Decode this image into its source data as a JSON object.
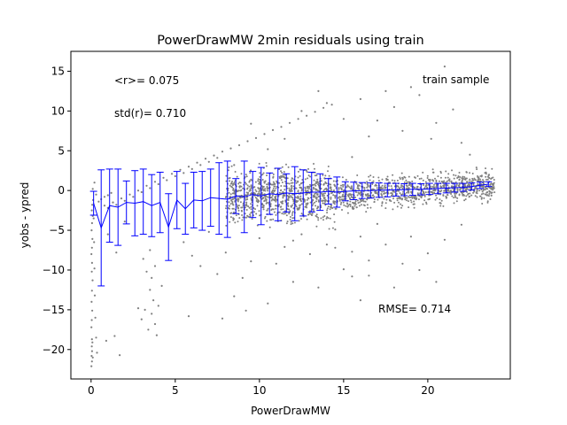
{
  "chart_data": {
    "type": "scatter",
    "title": "PowerDrawMW 2min residuals using train",
    "xlabel": "PowerDrawMW",
    "ylabel": "yobs - ypred",
    "xlim": [
      -1.2,
      24.9
    ],
    "ylim": [
      -23.7,
      17.5
    ],
    "xticks": [
      0,
      5,
      10,
      15,
      20
    ],
    "yticks": [
      -20,
      -15,
      -10,
      -5,
      0,
      5,
      10,
      15
    ],
    "grid": false,
    "annotations": {
      "mean": "<r>= 0.075",
      "std": "std(r)= 0.710",
      "rmse": "RMSE= 0.714",
      "sample": "train sample"
    },
    "colors": {
      "points": "#808080",
      "errorbars": "#0000ff",
      "axes": "#000000"
    },
    "series": [
      {
        "type": "errorbar",
        "x": [
          0.15,
          0.6,
          1.1,
          1.6,
          2.1,
          2.6,
          3.1,
          3.6,
          4.1,
          4.6,
          5.1,
          5.6,
          6.1,
          6.6,
          7.1,
          7.6,
          8.1,
          8.6,
          9.1,
          9.6,
          10.1,
          10.6,
          11.1,
          11.6,
          12.1,
          12.6,
          13.1,
          13.6,
          14.1,
          14.6,
          15.1,
          15.6,
          16.1,
          16.6,
          17.1,
          17.6,
          18.1,
          18.6,
          19.1,
          19.6,
          20.1,
          20.6,
          21.1,
          21.6,
          22.1,
          22.6,
          23.1,
          23.6
        ],
        "y": [
          -1.6,
          -4.7,
          -1.9,
          -2.1,
          -1.5,
          -1.6,
          -1.4,
          -1.9,
          -1.5,
          -4.6,
          -1.2,
          -2.3,
          -1.2,
          -1.3,
          -0.9,
          -1.0,
          -1.1,
          -0.7,
          -0.8,
          -0.5,
          -0.7,
          -0.4,
          -0.5,
          -0.3,
          -0.4,
          -0.3,
          -0.2,
          -0.2,
          -0.1,
          -0.2,
          -0.1,
          -0.05,
          0.0,
          0.0,
          0.05,
          0.05,
          0.1,
          0.1,
          0.15,
          0.15,
          0.2,
          0.25,
          0.3,
          0.35,
          0.4,
          0.5,
          0.65,
          0.8
        ],
        "yerr": [
          1.5,
          7.3,
          4.6,
          4.8,
          2.7,
          4.1,
          4.1,
          3.9,
          3.8,
          4.2,
          3.6,
          3.2,
          3.5,
          3.7,
          3.6,
          4.5,
          4.8,
          2.2,
          4.5,
          2.9,
          3.6,
          2.6,
          3.3,
          2.4,
          3.4,
          2.9,
          2.5,
          2.3,
          1.6,
          1.9,
          1.2,
          1.1,
          1.0,
          0.95,
          0.9,
          0.85,
          0.8,
          0.75,
          0.75,
          0.7,
          0.7,
          0.65,
          0.6,
          0.55,
          0.5,
          0.45,
          0.4,
          0.3
        ]
      },
      {
        "type": "scatter",
        "points": [
          [
            0.02,
            -22.1
          ],
          [
            0.05,
            -21.5
          ],
          [
            0.03,
            -20.8
          ],
          [
            0.06,
            -20.2
          ],
          [
            0.04,
            -19.6
          ],
          [
            0.08,
            -19.1
          ],
          [
            0.05,
            -18.7
          ],
          [
            0.1,
            -21.0
          ],
          [
            0.02,
            -17.2
          ],
          [
            0.04,
            -16.3
          ],
          [
            0.07,
            -15.1
          ],
          [
            0.03,
            -14.0
          ],
          [
            0.05,
            -12.6
          ],
          [
            0.09,
            -11.3
          ],
          [
            0.04,
            -10.2
          ],
          [
            0.06,
            -9.1
          ],
          [
            0.02,
            -8.0
          ],
          [
            0.05,
            -7.2
          ],
          [
            0.08,
            -6.1
          ],
          [
            0.03,
            -5.0
          ],
          [
            0.06,
            -4.1
          ],
          [
            0.1,
            -3.2
          ],
          [
            0.04,
            -2.5
          ],
          [
            0.07,
            -1.8
          ],
          [
            0.12,
            -1.2
          ],
          [
            0.15,
            -3.5
          ],
          [
            0.18,
            -6.5
          ],
          [
            0.2,
            -9.8
          ],
          [
            0.22,
            -13.2
          ],
          [
            0.25,
            -16.0
          ],
          [
            0.3,
            -18.5
          ],
          [
            0.35,
            -20.4
          ],
          [
            0.1,
            0.2
          ],
          [
            0.2,
            1.0
          ],
          [
            0.3,
            -0.5
          ],
          [
            0.45,
            -1.4
          ],
          [
            0.6,
            -1.1
          ],
          [
            0.8,
            -0.8
          ],
          [
            1.0,
            -0.6
          ],
          [
            1.2,
            -0.3
          ],
          [
            0.9,
            -18.9
          ],
          [
            1.4,
            -18.3
          ],
          [
            1.7,
            -20.7
          ],
          [
            1.0,
            -5.5
          ],
          [
            1.5,
            -7.8
          ],
          [
            2.0,
            -3.9
          ],
          [
            0.8,
            -1.9
          ],
          [
            1.3,
            -1.5
          ],
          [
            1.8,
            -1.0
          ],
          [
            2.3,
            -0.5
          ],
          [
            2.8,
            0.0
          ],
          [
            3.3,
            0.6
          ],
          [
            3.8,
            1.1
          ],
          [
            4.3,
            1.6
          ],
          [
            4.8,
            2.1
          ],
          [
            5.3,
            2.6
          ],
          [
            5.8,
            3.0
          ],
          [
            6.3,
            3.5
          ],
          [
            6.8,
            4.0
          ],
          [
            7.3,
            4.4
          ],
          [
            7.8,
            4.9
          ],
          [
            8.3,
            5.3
          ],
          [
            8.8,
            5.7
          ],
          [
            9.3,
            6.2
          ],
          [
            9.8,
            6.6
          ],
          [
            10.3,
            7.1
          ],
          [
            10.8,
            7.6
          ],
          [
            11.3,
            8.0
          ],
          [
            11.8,
            8.5
          ],
          [
            12.3,
            9.0
          ],
          [
            12.8,
            9.4
          ],
          [
            13.3,
            9.9
          ],
          [
            13.8,
            10.4
          ],
          [
            14.3,
            10.8
          ],
          [
            1.0,
            -2.2
          ],
          [
            1.5,
            -1.8
          ],
          [
            2.0,
            -1.3
          ],
          [
            2.5,
            -0.8
          ],
          [
            3.0,
            -0.2
          ],
          [
            3.5,
            0.3
          ],
          [
            4.0,
            0.8
          ],
          [
            4.5,
            1.3
          ],
          [
            5.0,
            1.8
          ],
          [
            5.5,
            2.2
          ],
          [
            6.0,
            2.7
          ],
          [
            6.5,
            3.2
          ],
          [
            7.0,
            3.6
          ],
          [
            7.5,
            4.1
          ],
          [
            2.8,
            -14.8
          ],
          [
            3.0,
            -16.2
          ],
          [
            3.2,
            -15.0
          ],
          [
            3.4,
            -17.5
          ],
          [
            3.5,
            -12.5
          ],
          [
            3.6,
            -11.0
          ],
          [
            3.7,
            -13.8
          ],
          [
            3.8,
            -16.8
          ],
          [
            3.9,
            -18.2
          ],
          [
            4.0,
            -14.5
          ],
          [
            3.3,
            -10.2
          ],
          [
            3.1,
            -8.6
          ],
          [
            3.5,
            -7.5
          ],
          [
            3.8,
            -9.5
          ],
          [
            4.2,
            -12.0
          ],
          [
            3.6,
            -15.5
          ],
          [
            5.5,
            -6.5
          ],
          [
            6.0,
            -8.2
          ],
          [
            6.5,
            -9.5
          ],
          [
            7.0,
            -5.2
          ],
          [
            7.5,
            -10.5
          ],
          [
            8.0,
            -7.8
          ],
          [
            8.5,
            -13.3
          ],
          [
            9.0,
            -11.0
          ],
          [
            9.5,
            -8.9
          ],
          [
            10.0,
            -6.0
          ],
          [
            10.5,
            -14.2
          ],
          [
            11.0,
            -9.2
          ],
          [
            11.5,
            -7.1
          ],
          [
            12.0,
            -11.5
          ],
          [
            12.5,
            -5.5
          ],
          [
            13.0,
            -8.0
          ],
          [
            13.5,
            -12.2
          ],
          [
            14.0,
            -6.8
          ],
          [
            14.5,
            -4.9
          ],
          [
            15.0,
            -9.9
          ],
          [
            15.5,
            -7.7
          ],
          [
            16.0,
            -5.8
          ],
          [
            16.5,
            -10.7
          ],
          [
            17.0,
            -4.2
          ],
          [
            5.8,
            -15.8
          ],
          [
            7.8,
            -16.1
          ],
          [
            9.2,
            -15.1
          ],
          [
            12.0,
            -6.3
          ],
          [
            8.5,
            3.2
          ],
          [
            9.5,
            8.4
          ],
          [
            10.5,
            5.2
          ],
          [
            11.5,
            6.5
          ],
          [
            12.5,
            10.0
          ],
          [
            13.5,
            12.5
          ],
          [
            14.0,
            11.0
          ],
          [
            15.0,
            9.0
          ],
          [
            16.0,
            11.5
          ],
          [
            17.0,
            8.8
          ],
          [
            18.0,
            10.5
          ],
          [
            19.0,
            13.0
          ],
          [
            20.0,
            14.0
          ],
          [
            21.0,
            15.6
          ],
          [
            19.5,
            12.0
          ],
          [
            18.5,
            7.5
          ],
          [
            17.5,
            12.5
          ],
          [
            16.5,
            6.8
          ],
          [
            20.5,
            8.5
          ],
          [
            21.5,
            10.2
          ],
          [
            22.0,
            6.0
          ],
          [
            22.5,
            4.5
          ],
          [
            20.2,
            6.5
          ],
          [
            15.5,
            4.2
          ],
          [
            14.5,
            -7.2
          ],
          [
            15.5,
            -10.8
          ],
          [
            16.5,
            -8.8
          ],
          [
            17.5,
            -6.8
          ],
          [
            18.5,
            -9.2
          ],
          [
            19.0,
            -5.8
          ],
          [
            20.0,
            -7.9
          ],
          [
            21.0,
            -6.2
          ],
          [
            22.0,
            -4.3
          ],
          [
            18.0,
            -12.2
          ],
          [
            16.0,
            -13.8
          ],
          [
            20.5,
            -11.5
          ],
          [
            19.5,
            -10.0
          ],
          [
            23.3,
            0.4
          ],
          [
            23.5,
            0.6
          ],
          [
            23.7,
            0.7
          ],
          [
            23.9,
            0.8
          ],
          [
            23.8,
            0.5
          ],
          [
            23.6,
            1.0
          ]
        ],
        "bands": [
          {
            "x": [
              14.5,
              24.0
            ],
            "y_center_from": -0.6,
            "y_center_to": 0.7,
            "spread": 0.9
          },
          {
            "x": [
              8.0,
              14.5
            ],
            "y_center_from": -0.9,
            "y_center_to": -0.4,
            "spread": 1.6
          }
        ]
      }
    ]
  }
}
